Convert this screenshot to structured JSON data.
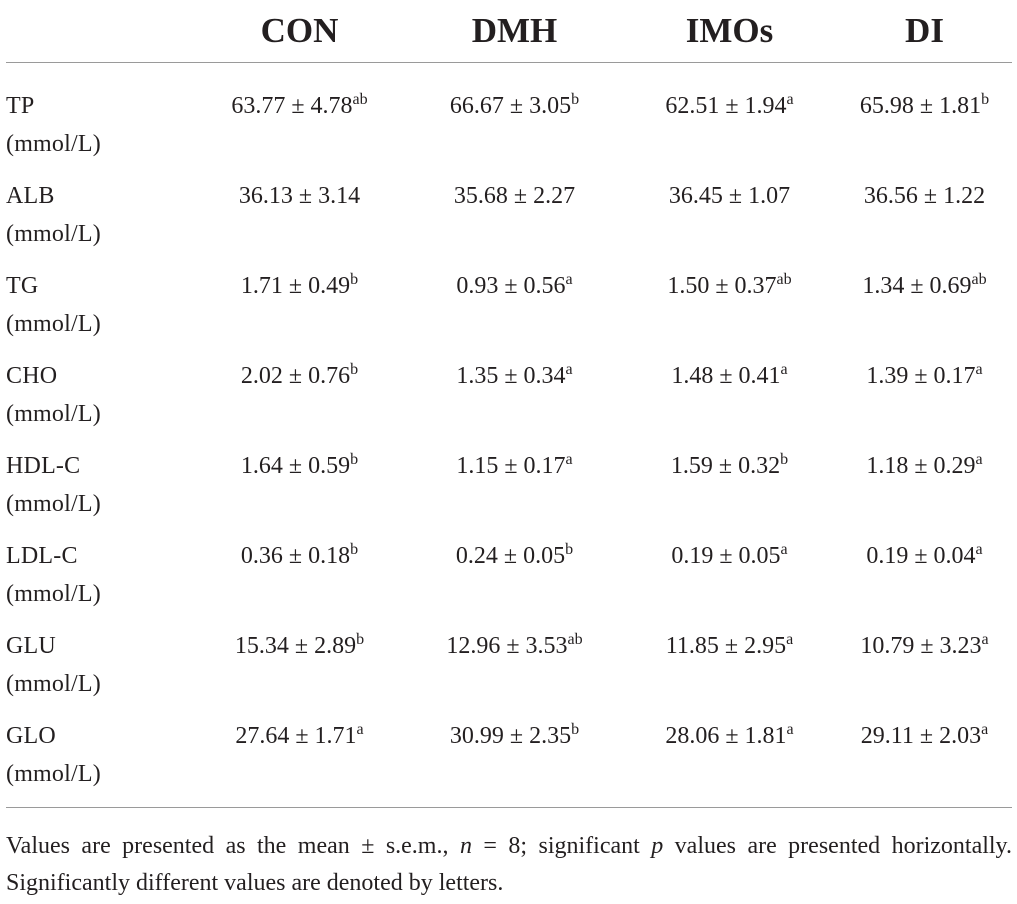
{
  "table": {
    "columns": [
      "",
      "CON",
      "DMH",
      "IMOs",
      "DI"
    ],
    "rows": [
      {
        "name": "TP",
        "unit": "(mmol/L)",
        "cells": [
          {
            "value": "63.77 ± 4.78",
            "sup": "ab"
          },
          {
            "value": "66.67 ± 3.05",
            "sup": "b"
          },
          {
            "value": "62.51 ± 1.94",
            "sup": "a"
          },
          {
            "value": "65.98 ± 1.81",
            "sup": "b"
          }
        ]
      },
      {
        "name": "ALB",
        "unit": "(mmol/L)",
        "cells": [
          {
            "value": "36.13 ± 3.14",
            "sup": ""
          },
          {
            "value": "35.68 ± 2.27",
            "sup": ""
          },
          {
            "value": "36.45 ± 1.07",
            "sup": ""
          },
          {
            "value": "36.56 ± 1.22",
            "sup": ""
          }
        ]
      },
      {
        "name": "TG",
        "unit": "(mmol/L)",
        "cells": [
          {
            "value": "1.71 ± 0.49",
            "sup": "b"
          },
          {
            "value": "0.93 ± 0.56",
            "sup": "a"
          },
          {
            "value": "1.50 ± 0.37",
            "sup": "ab"
          },
          {
            "value": "1.34 ± 0.69",
            "sup": "ab"
          }
        ]
      },
      {
        "name": "CHO",
        "unit": "(mmol/L)",
        "cells": [
          {
            "value": "2.02 ± 0.76",
            "sup": "b"
          },
          {
            "value": "1.35 ± 0.34",
            "sup": "a"
          },
          {
            "value": "1.48 ± 0.41",
            "sup": "a"
          },
          {
            "value": "1.39 ± 0.17",
            "sup": "a"
          }
        ]
      },
      {
        "name": "HDL-C",
        "unit": "(mmol/L)",
        "cells": [
          {
            "value": "1.64 ± 0.59",
            "sup": "b"
          },
          {
            "value": "1.15 ± 0.17",
            "sup": "a"
          },
          {
            "value": "1.59 ± 0.32",
            "sup": "b"
          },
          {
            "value": "1.18 ± 0.29",
            "sup": "a"
          }
        ]
      },
      {
        "name": "LDL-C",
        "unit": "(mmol/L)",
        "cells": [
          {
            "value": "0.36 ± 0.18",
            "sup": "b"
          },
          {
            "value": "0.24 ± 0.05",
            "sup": "b"
          },
          {
            "value": "0.19 ± 0.05",
            "sup": "a"
          },
          {
            "value": "0.19 ± 0.04",
            "sup": "a"
          }
        ]
      },
      {
        "name": "GLU",
        "unit": "(mmol/L)",
        "cells": [
          {
            "value": "15.34 ± 2.89",
            "sup": "b"
          },
          {
            "value": "12.96 ± 3.53",
            "sup": "ab"
          },
          {
            "value": "11.85 ± 2.95",
            "sup": "a"
          },
          {
            "value": "10.79 ± 3.23",
            "sup": "a"
          }
        ]
      },
      {
        "name": "GLO",
        "unit": "(mmol/L)",
        "cells": [
          {
            "value": "27.64 ± 1.71",
            "sup": "a"
          },
          {
            "value": "30.99 ± 2.35",
            "sup": "b"
          },
          {
            "value": "28.06 ± 1.81",
            "sup": "a"
          },
          {
            "value": "29.11 ± 2.03",
            "sup": "a"
          }
        ]
      }
    ]
  },
  "footnote": {
    "part1": "Values are presented as the mean ± s.e.m., ",
    "n_symbol": "n",
    "part2": " = 8; significant ",
    "p_symbol": "p",
    "part3": " values are presented horizontally. Significantly different values are denoted by letters."
  },
  "colors": {
    "text": "#231f20",
    "rule": "#9a9a9a",
    "background": "#ffffff"
  }
}
